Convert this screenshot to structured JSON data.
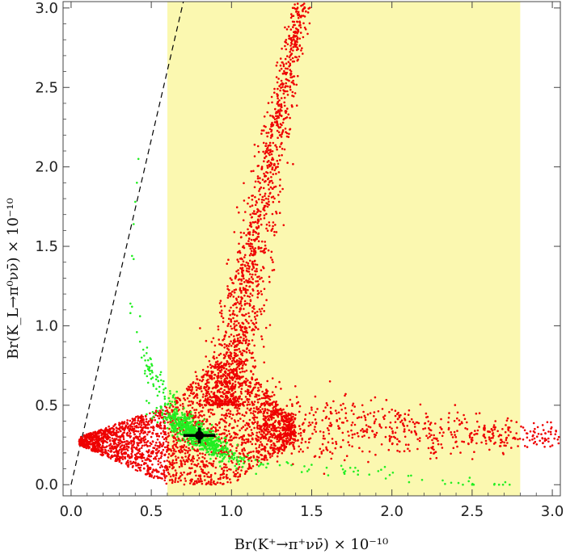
{
  "chart_data": {
    "type": "scatter",
    "title": "",
    "xlabel": "Br(K⁺→π⁺νν̄) × 10⁻¹⁰",
    "ylabel": "Br(K_L→π⁰νν̄) × 10⁻¹⁰",
    "xlim": [
      -0.05,
      3.05
    ],
    "ylim": [
      -0.07,
      3.04
    ],
    "xticks": [
      "0.0",
      "0.5",
      "1.0",
      "1.5",
      "2.0",
      "2.5",
      "3.0"
    ],
    "yticks": [
      "0.0",
      "0.5",
      "1.0",
      "1.5",
      "2.0",
      "2.5",
      "3.0"
    ],
    "grid": false,
    "legend": "none",
    "colors": {
      "band": "#fbf8b0",
      "red_points": "#ee0000",
      "green_points": "#22ee22",
      "marker": "#000000",
      "bound_line": "#000000"
    },
    "experimental_band": {
      "x_range": [
        0.6,
        2.8
      ]
    },
    "grossman_nir_bound": {
      "x": [
        0.0,
        0.7
      ],
      "y": [
        0.0,
        3.04
      ],
      "style": "dashed"
    },
    "measurement_point": {
      "x": 0.8,
      "y": 0.31,
      "x_err": 0.1,
      "y_err": 0.05
    },
    "red_region": {
      "description_points": [
        [
          0.05,
          0.27
        ],
        [
          0.3,
          0.35
        ],
        [
          0.5,
          0.45
        ],
        [
          0.65,
          0.6
        ],
        [
          0.8,
          0.8
        ],
        [
          1.0,
          1.1
        ],
        [
          1.1,
          1.5
        ],
        [
          1.2,
          2.0
        ],
        [
          1.3,
          2.5
        ],
        [
          1.45,
          3.04
        ],
        [
          1.5,
          0.35
        ],
        [
          2.0,
          0.34
        ],
        [
          2.5,
          0.33
        ],
        [
          2.9,
          0.32
        ],
        [
          3.0,
          0.3
        ],
        [
          0.7,
          0.1
        ],
        [
          0.85,
          0.02
        ],
        [
          1.0,
          0.15
        ]
      ]
    },
    "green_region": {
      "description_points": [
        [
          0.42,
          2.05
        ],
        [
          0.4,
          1.8
        ],
        [
          0.38,
          1.4
        ],
        [
          0.37,
          1.1
        ],
        [
          0.45,
          0.8
        ],
        [
          0.5,
          0.6
        ],
        [
          0.6,
          0.45
        ],
        [
          0.7,
          0.38
        ],
        [
          0.8,
          0.3
        ],
        [
          0.9,
          0.22
        ],
        [
          1.1,
          0.12
        ],
        [
          1.4,
          0.05
        ],
        [
          1.8,
          0.02
        ],
        [
          2.4,
          0.02
        ],
        [
          2.7,
          0.03
        ]
      ]
    }
  }
}
